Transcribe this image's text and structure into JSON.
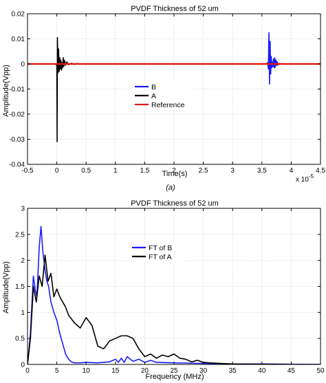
{
  "figure": {
    "caption": "(a)"
  },
  "chart_data": [
    {
      "type": "line",
      "title": "PVDF Thickness of 52 um",
      "xlabel": "Time(s)",
      "ylabel": "Amplitude(Vpp)",
      "x_exponent_label": "x 10",
      "x_exponent_power": "-5",
      "xlim": [
        -0.5,
        4.5
      ],
      "ylim": [
        -0.04,
        0.02
      ],
      "x_ticks": [
        -0.5,
        0,
        0.5,
        1,
        1.5,
        2,
        2.5,
        3,
        3.5,
        4,
        4.5
      ],
      "x_tick_labels": [
        "-0.5",
        "0",
        "0.5",
        "1",
        "1.5",
        "2",
        "2.5",
        "3",
        "3.5",
        "4",
        "4.5"
      ],
      "y_ticks": [
        -0.04,
        -0.03,
        -0.02,
        -0.01,
        0,
        0.01,
        0.02
      ],
      "y_tick_labels": [
        "-0.04",
        "-0.03",
        "-0.02",
        "-0.01",
        "0",
        "0.01",
        "0.02"
      ],
      "grid": true,
      "legend_position": "center-left",
      "series": [
        {
          "name": "B",
          "color": "#1a1aff",
          "x": [
            3.56,
            3.6,
            3.61,
            3.62,
            3.63,
            3.64,
            3.65,
            3.66,
            3.67,
            3.68,
            3.69,
            3.7,
            3.71,
            3.72,
            3.73,
            3.74,
            3.75,
            3.76,
            3.78,
            3.8,
            3.85
          ],
          "y": [
            0,
            0.0005,
            -0.002,
            0.0125,
            -0.008,
            0.009,
            -0.004,
            0.003,
            -0.0015,
            0.0005,
            -0.001,
            0.002,
            -0.0015,
            0.0025,
            -0.001,
            0.0015,
            -0.0005,
            0.0008,
            -0.0003,
            0.0002,
            0
          ]
        },
        {
          "name": "A",
          "color": "#000000",
          "x": [
            -0.03,
            0,
            0.005,
            0.01,
            0.02,
            0.03,
            0.04,
            0.05,
            0.06,
            0.07,
            0.08,
            0.09,
            0.1,
            0.11,
            0.12,
            0.13,
            0.15,
            0.17,
            0.2,
            0.25,
            0.3,
            0.35,
            0.4,
            0.45,
            3.62,
            3.64,
            3.66,
            3.68,
            3.7,
            3.72,
            3.74,
            3.76,
            3.78
          ],
          "y": [
            0,
            -0.0005,
            -0.031,
            0.0105,
            -0.0035,
            0.006,
            -0.003,
            0.0025,
            -0.002,
            0.0015,
            -0.0025,
            0.0005,
            -0.0015,
            0.0025,
            -0.001,
            0.0015,
            -0.0005,
            0.0008,
            -0.0003,
            0.0003,
            -0.0002,
            0.0002,
            -0.0001,
            0,
            0,
            -0.001,
            0.0015,
            -0.001,
            0.002,
            -0.0015,
            0.001,
            -0.0005,
            0
          ]
        },
        {
          "name": "Reference",
          "color": "#e01a1a",
          "x": [
            -0.5,
            4.5
          ],
          "y": [
            0,
            0
          ]
        }
      ]
    },
    {
      "type": "line",
      "title": "PVDF Thickness of 52 um",
      "xlabel": "Frequency (MHz)",
      "ylabel": "Amplitude(Vpp)",
      "xlim": [
        0,
        50
      ],
      "ylim": [
        0,
        3
      ],
      "x_ticks": [
        0,
        5,
        10,
        15,
        20,
        25,
        30,
        35,
        40,
        45,
        50
      ],
      "x_tick_labels": [
        "0",
        "5",
        "10",
        "15",
        "20",
        "25",
        "30",
        "35",
        "40",
        "45",
        "50"
      ],
      "y_ticks": [
        0,
        0.5,
        1,
        1.5,
        2,
        2.5,
        3
      ],
      "y_tick_labels": [
        "0",
        "0.5",
        "1",
        "1.5",
        "2",
        "2.5",
        "3"
      ],
      "grid": true,
      "legend_position": "center",
      "series": [
        {
          "name": "FT of B",
          "color": "#1a1aff",
          "x": [
            0,
            0.5,
            1,
            1.3,
            1.6,
            2,
            2.3,
            2.6,
            3,
            3.3,
            3.6,
            4,
            4.5,
            5,
            5.5,
            6,
            6.5,
            7,
            7.5,
            8,
            9,
            10,
            12,
            14,
            15,
            15.5,
            16,
            16.5,
            17,
            18,
            19,
            20,
            21,
            22,
            25,
            30,
            35,
            40,
            50
          ],
          "y": [
            0,
            0.6,
            1.7,
            1.45,
            1.3,
            2.25,
            2.65,
            2.2,
            1.8,
            1.6,
            1.5,
            1.2,
            1.0,
            0.85,
            0.6,
            0.4,
            0.2,
            0.1,
            0.05,
            0.03,
            0.03,
            0.04,
            0.03,
            0.05,
            0.1,
            0.04,
            0.12,
            0.04,
            0.15,
            0.06,
            0.1,
            0.04,
            0.08,
            0.04,
            0.03,
            0.02,
            0.01,
            0.01,
            0
          ]
        },
        {
          "name": "FT of A",
          "color": "#000000",
          "x": [
            0,
            0.5,
            1,
            1.5,
            2,
            2.5,
            3,
            3.5,
            4,
            4.5,
            5,
            5.5,
            6,
            6.5,
            7,
            8,
            9,
            10,
            11,
            12,
            13,
            14,
            15,
            16,
            17,
            18,
            19,
            20,
            21,
            22,
            23,
            24,
            25,
            26,
            27,
            28,
            29,
            30,
            31,
            33,
            35,
            40,
            45,
            50
          ],
          "y": [
            0,
            0.5,
            1.5,
            1.2,
            1.7,
            1.5,
            2.1,
            1.6,
            1.75,
            1.3,
            1.45,
            1.3,
            1.2,
            1.1,
            0.95,
            0.8,
            0.7,
            0.9,
            0.75,
            0.35,
            0.3,
            0.45,
            0.5,
            0.55,
            0.55,
            0.5,
            0.3,
            0.15,
            0.2,
            0.12,
            0.18,
            0.15,
            0.2,
            0.12,
            0.1,
            0.05,
            0.08,
            0.04,
            0.03,
            0.02,
            0.01,
            0.005,
            0,
            0
          ]
        }
      ]
    }
  ]
}
